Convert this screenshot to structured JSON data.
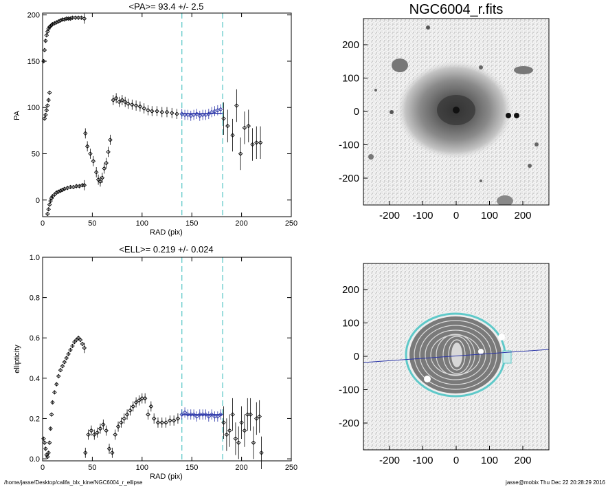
{
  "footer": {
    "path": "/home/jasse/Desktop/califa_blx_kine/NGC6004_r_ellipse",
    "user_time": "jasse@mobix  Thu Dec 22 20:28:29 2016"
  },
  "colors": {
    "mean_fit": "#2a35a8",
    "boundary": "#5fc9c9",
    "points": "#000000",
    "image_dark": "#222222"
  },
  "image_title": "NGC6004_r.fits",
  "image_ticks": [
    "-200",
    "-100",
    "0",
    "100",
    "200"
  ],
  "chart_data": [
    {
      "type": "scatter",
      "title": "<PA>=  93.4 +/-   2.5",
      "xlabel": "RAD (pix)",
      "ylabel": "PA",
      "xlim": [
        0,
        250
      ],
      "ylim": [
        -18,
        202
      ],
      "xticks": [
        0,
        50,
        100,
        150,
        200,
        250
      ],
      "yticks": [
        0,
        50,
        100,
        150,
        200
      ],
      "vlines": [
        140,
        181
      ],
      "mean_line": {
        "x": [
          140,
          181
        ],
        "y": 93.4
      },
      "series": [
        {
          "x": [
            1,
            2,
            3,
            4,
            5,
            6,
            7,
            8,
            9,
            10,
            12,
            14,
            16,
            18,
            20,
            22,
            24,
            26,
            28,
            30,
            33,
            36,
            39,
            42
          ],
          "y": [
            150,
            162,
            172,
            178,
            182,
            185,
            187,
            188,
            189,
            190,
            191,
            192,
            193,
            194,
            195,
            195,
            196,
            196,
            196,
            197,
            197,
            197,
            197,
            196
          ]
        },
        {
          "x": [
            2,
            3,
            4,
            5,
            6,
            7
          ],
          "y": [
            88,
            92,
            97,
            102,
            108,
            116
          ]
        },
        {
          "x": [
            5,
            6,
            7,
            8,
            9,
            10,
            12,
            14,
            16,
            18,
            20,
            22,
            25,
            28,
            31,
            34,
            37,
            40,
            42
          ],
          "y": [
            -15,
            -10,
            -5,
            -1,
            2,
            4,
            6,
            8,
            9,
            10,
            11,
            12,
            13,
            14,
            14,
            15,
            15,
            16,
            16
          ]
        },
        {
          "x": [
            43,
            45,
            48,
            51,
            54,
            56,
            58,
            60,
            62,
            64,
            66,
            68,
            71,
            74,
            77,
            80,
            83,
            86,
            90,
            94,
            98,
            102,
            106,
            110,
            115,
            120,
            125,
            130,
            135
          ],
          "y": [
            72,
            58,
            50,
            42,
            30,
            22,
            20,
            24,
            34,
            40,
            52,
            65,
            108,
            110,
            106,
            108,
            106,
            104,
            103,
            102,
            101,
            99,
            97,
            96,
            96,
            95,
            95,
            94,
            93
          ]
        },
        {
          "x": [
            140,
            143,
            146,
            149,
            152,
            155,
            158,
            161,
            164,
            167,
            170,
            173,
            176,
            179
          ],
          "y": [
            93,
            92,
            92,
            91,
            92,
            93,
            91,
            92,
            92,
            93,
            95,
            96,
            97,
            98
          ]
        },
        {
          "x": [
            182,
            186,
            191,
            195,
            199,
            203,
            207,
            211,
            215,
            219
          ],
          "y": [
            88,
            80,
            70,
            102,
            50,
            78,
            80,
            60,
            62,
            62
          ]
        }
      ]
    },
    {
      "type": "scatter",
      "title": "<ELL>= 0.219 +/-  0.024",
      "xlabel": "RAD (pix)",
      "ylabel": "ellipticity",
      "xlim": [
        0,
        250
      ],
      "ylim": [
        -0.01,
        1.0
      ],
      "xticks": [
        0,
        50,
        100,
        150,
        200,
        250
      ],
      "yticks": [
        0.0,
        0.2,
        0.4,
        0.6,
        0.8,
        1.0
      ],
      "vlines": [
        140,
        181
      ],
      "mean_line": {
        "x": [
          140,
          181
        ],
        "y": 0.219
      },
      "series": [
        {
          "x": [
            1,
            2,
            3,
            4,
            5,
            6,
            7,
            8,
            9,
            10,
            12,
            14,
            16,
            18,
            20,
            22,
            24,
            26,
            28,
            30,
            32,
            34,
            36,
            38,
            40,
            42
          ],
          "y": [
            0.1,
            0.08,
            0.05,
            0.02,
            0.01,
            0.03,
            0.08,
            0.15,
            0.22,
            0.28,
            0.33,
            0.37,
            0.41,
            0.44,
            0.46,
            0.48,
            0.5,
            0.52,
            0.54,
            0.56,
            0.58,
            0.59,
            0.6,
            0.59,
            0.57,
            0.55
          ]
        },
        {
          "x": [
            43,
            46,
            49,
            52,
            55,
            58,
            61,
            64,
            67,
            70,
            73,
            76,
            79,
            82,
            85,
            88,
            91,
            94,
            97,
            100,
            103,
            106,
            109,
            112,
            116,
            120,
            124,
            128,
            132,
            136
          ],
          "y": [
            0.03,
            0.12,
            0.14,
            0.12,
            0.13,
            0.15,
            0.17,
            0.14,
            0.05,
            0.03,
            0.12,
            0.16,
            0.18,
            0.2,
            0.22,
            0.24,
            0.26,
            0.28,
            0.29,
            0.3,
            0.3,
            0.22,
            0.26,
            0.2,
            0.18,
            0.18,
            0.18,
            0.19,
            0.19,
            0.2
          ]
        },
        {
          "x": [
            140,
            143,
            146,
            149,
            152,
            155,
            158,
            161,
            164,
            167,
            170,
            173,
            176,
            179
          ],
          "y": [
            0.22,
            0.23,
            0.22,
            0.22,
            0.22,
            0.21,
            0.22,
            0.22,
            0.22,
            0.21,
            0.22,
            0.21,
            0.21,
            0.22
          ]
        },
        {
          "x": [
            182,
            185,
            188,
            191,
            194,
            197,
            200,
            203,
            206,
            209,
            212,
            215,
            218,
            220
          ],
          "y": [
            0.18,
            0.12,
            0.14,
            0.22,
            0.1,
            0.08,
            0.18,
            0.14,
            0.22,
            0.22,
            0.08,
            0.2,
            0.21,
            0.03
          ]
        }
      ]
    }
  ]
}
